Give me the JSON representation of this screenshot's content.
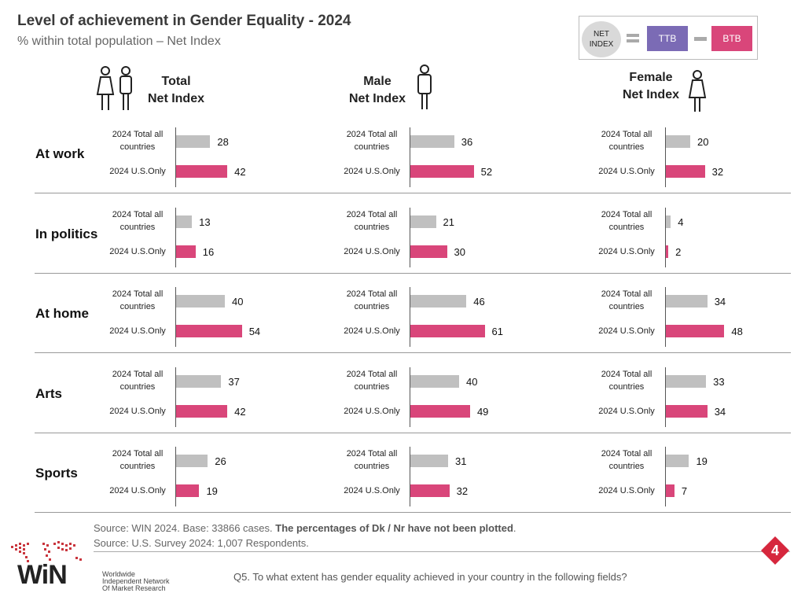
{
  "header": {
    "title": "Level of achievement in Gender Equality - 2024",
    "subtitle": "% within total population – Net Index"
  },
  "legend": {
    "net": "NET",
    "index": "INDEX",
    "ttb": "TTB",
    "btb": "BTB",
    "ttb_color": "#7b6bb5",
    "btb_color": "#d9467a"
  },
  "columns": [
    {
      "line1": "Total",
      "line2": "Net Index"
    },
    {
      "line1": "Male",
      "line2": "Net Index"
    },
    {
      "line1": "Female",
      "line2": "Net Index"
    }
  ],
  "bar_labels": {
    "all_line1": "2024 Total all",
    "all_line2": "countries",
    "us": "2024 U.S.Only"
  },
  "chart_data": {
    "type": "bar",
    "orientation": "horizontal",
    "title": "Level of achievement in Gender Equality - 2024",
    "subtitle": "% within total population – Net Index",
    "panels": [
      "Total Net Index",
      "Male Net Index",
      "Female Net Index"
    ],
    "categories": [
      "At work",
      "In politics",
      "At home",
      "Arts",
      "Sports"
    ],
    "series": [
      {
        "name": "2024 Total all countries",
        "color": "#c0c0c0",
        "values": {
          "Total": [
            28,
            13,
            40,
            37,
            26
          ],
          "Male": [
            36,
            21,
            46,
            40,
            31
          ],
          "Female": [
            20,
            4,
            34,
            33,
            19
          ]
        }
      },
      {
        "name": "2024 U.S.Only",
        "color": "#d9467a",
        "values": {
          "Total": [
            42,
            16,
            54,
            42,
            19
          ],
          "Male": [
            52,
            30,
            61,
            49,
            32
          ],
          "Female": [
            32,
            2,
            48,
            34,
            7
          ]
        }
      }
    ],
    "xlim": [
      0,
      100
    ]
  },
  "footer": {
    "source1_a": "Source: WIN 2024. Base: 33866 cases. ",
    "source1_b": "The percentages of Dk / Nr have not been plotted",
    "source1_c": ".",
    "source2": "Source: U.S. Survey  2024: 1,007 Respondents.",
    "question": "Q5. To what extent has gender equality achieved in your country in the following fields?",
    "page": "4",
    "logo_word": "WiN",
    "logo_l1": "Worldwide",
    "logo_l2": "Independent Network",
    "logo_l3": "Of Market Research"
  }
}
